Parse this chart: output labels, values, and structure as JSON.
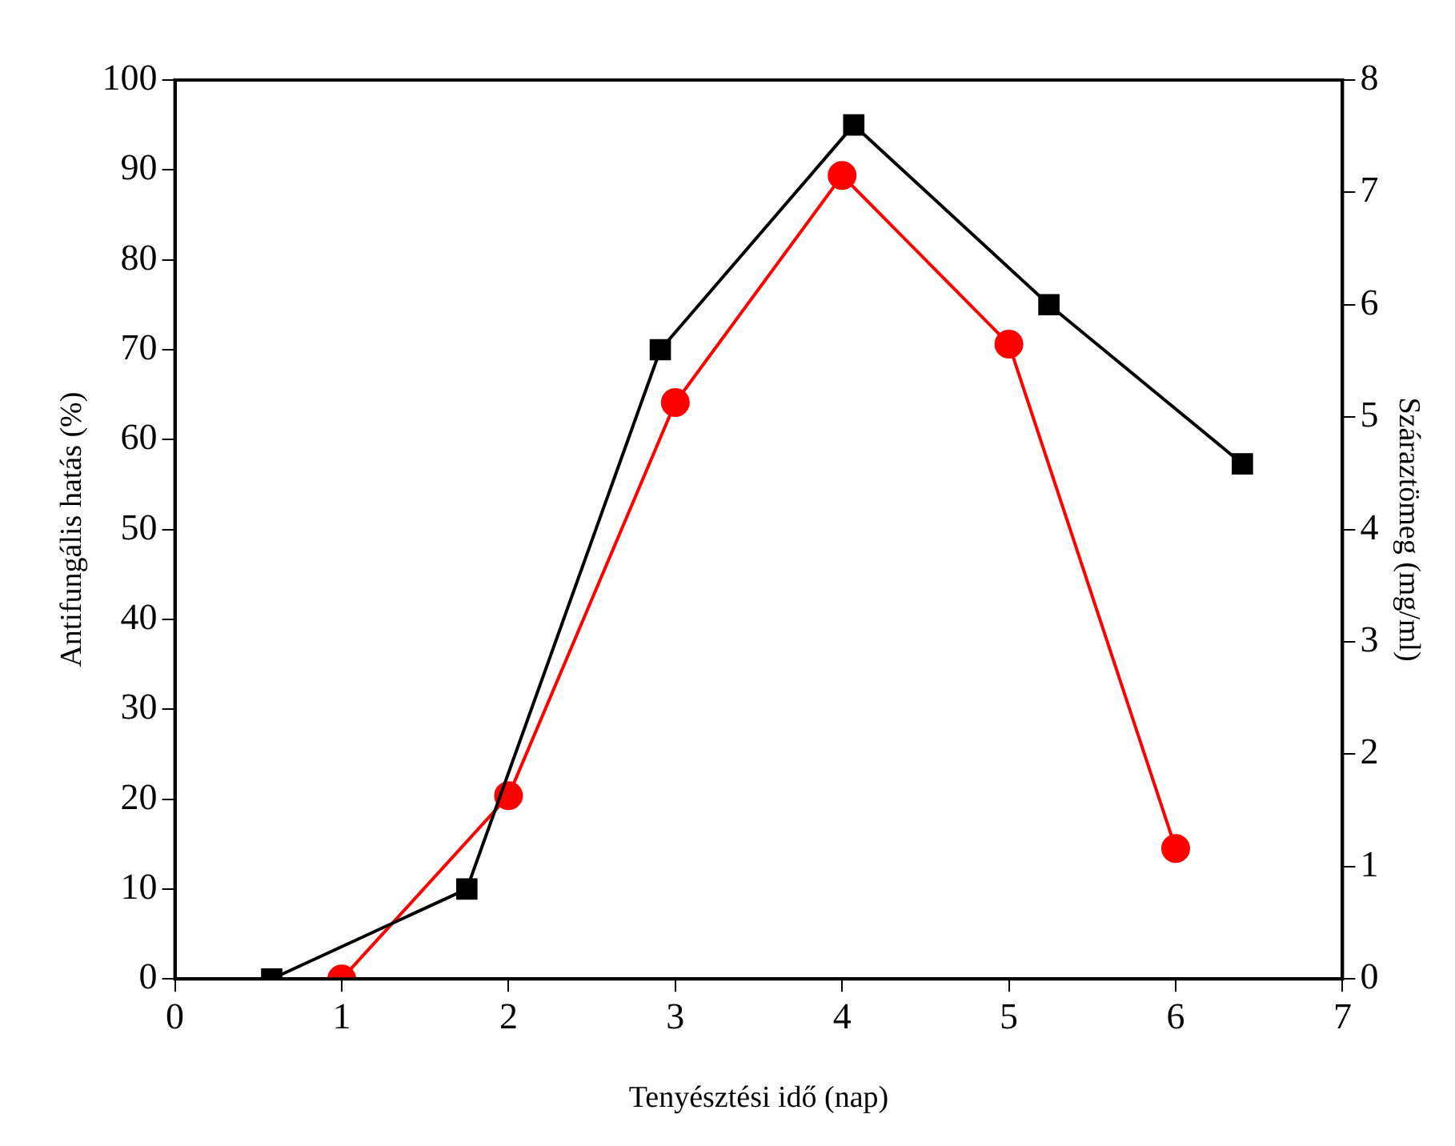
{
  "chart_data": {
    "type": "line",
    "xlabel": "Tenyésztési idő (nap)",
    "ylabel": "Antifungális hatás (%)",
    "y2label": "Száraztömeg (mg/ml)",
    "xlim": [
      0,
      7
    ],
    "xticks": [
      0,
      1,
      2,
      3,
      4,
      5,
      6,
      7
    ],
    "ylim": [
      0,
      100
    ],
    "yticks": [
      0,
      10,
      20,
      30,
      40,
      50,
      60,
      70,
      80,
      90,
      100
    ],
    "y2lim": [
      0,
      8
    ],
    "y2ticks": [
      0,
      1,
      2,
      3,
      4,
      5,
      6,
      7,
      8
    ],
    "grid": false,
    "legend": false,
    "line_style": "solid",
    "series": [
      {
        "color": "#000000",
        "marker": "square",
        "axis": "y",
        "x": [
          0.58,
          1.75,
          2.91,
          4.07,
          5.24,
          6.4
        ],
        "values": [
          0,
          10,
          70,
          95,
          75,
          57.3
        ]
      },
      {
        "color": "#ff0000",
        "marker": "circle",
        "axis": "y2",
        "x": [
          1,
          2,
          3,
          4,
          5,
          6
        ],
        "values": [
          0,
          1.63,
          5.13,
          7.15,
          5.65,
          1.16
        ]
      }
    ]
  }
}
